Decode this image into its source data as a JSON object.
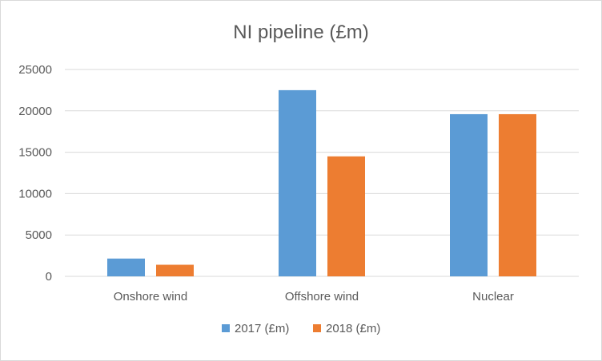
{
  "chart_data": {
    "type": "bar",
    "title": "NI pipeline (£m)",
    "xlabel": "",
    "ylabel": "",
    "categories": [
      "Onshore wind",
      "Offshore wind",
      "Nuclear"
    ],
    "series": [
      {
        "name": "2017 (£m)",
        "color": "#5b9bd5",
        "values": [
          2150,
          22500,
          19600
        ]
      },
      {
        "name": "2018 (£m)",
        "color": "#ed7d31",
        "values": [
          1400,
          14500,
          19600
        ]
      }
    ],
    "ylim": [
      0,
      25000
    ],
    "yticks": [
      "0",
      "5000",
      "10000",
      "15000",
      "20000",
      "25000"
    ],
    "grid": true,
    "legend_position": "bottom"
  }
}
